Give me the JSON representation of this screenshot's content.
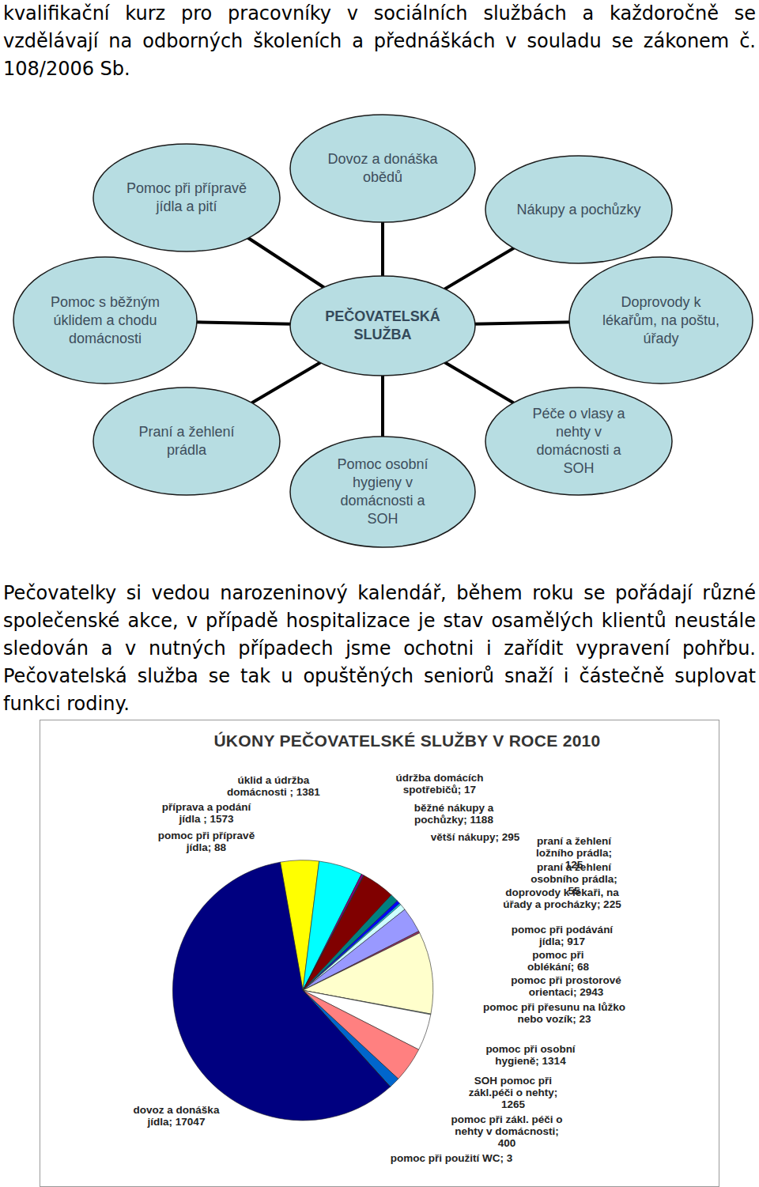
{
  "paragraphs": [
    "kvalifikační kurz pro pracovníky v sociálních službách a každoročně se vzdělávají na odborných školeních a přednáškách v souladu se zákonem č. 108/2006 Sb.",
    "Pečovatelky si vedou narozeninový kalendář, během roku se pořádají různé společenské akce, v případě hospitalizace je stav osamělých klientů neustále sledován a v nutných případech jsme ochotni i zařídit vypravení pohřbu. Pečovatelská služba se tak u opuštěných seniorů snaží i částečně suplovat funkci rodiny."
  ],
  "diagram": {
    "center": "PEČOVATELSKÁ SLUŽBA",
    "nodes": [
      "Pomoc při přípravě jídla a pití",
      "Dovoz a donáška obědů",
      "Nákupy a pochůzky",
      "Pomoc s běžným úklidem a chodu domácnosti",
      "Doprovody k lékařům, na poštu, úřady",
      "Praní a žehlení prádla",
      "Pomoc osobní hygieny v domácnosti a SOH",
      "Péče o vlasy a nehty v domácnosti a SOH"
    ]
  },
  "chart_data": {
    "type": "pie",
    "title": "ÚKONY PEČOVATELSKÉ SLUŽBY V ROCE 2010",
    "categories": [
      "úklid a údržba domácnosti",
      "příprava a podání jídla",
      "pomoc při přípravě jídla",
      "údržba domácích spotřebičů",
      "běžné nákupy a pochůzky",
      "větší nákupy",
      "praní a žehlení ložního prádla",
      "praní a žehlení osobního prádla",
      "doprovody k lékaři, na úřady a procházky",
      "pomoc při podávání jídla",
      "pomoc při oblékání",
      "pomoc při prostorové orientaci",
      "pomoc při přesunu na lůžko nebo vozík",
      "pomoc při osobní hygieně",
      "SOH pomoc při zákl.péči o nehty",
      "pomoc při zákl. péči o nehty v domácnosti",
      "pomoc při použití WC",
      "dovoz a donáška jídla"
    ],
    "values": [
      1381,
      1573,
      88,
      17,
      1188,
      295,
      125,
      55,
      225,
      917,
      68,
      2943,
      23,
      1314,
      1265,
      400,
      3,
      17047
    ],
    "value_labels": [
      "úklid a údržba domácnosti ; 1381",
      "příprava a podání jídla ; 1573",
      "pomoc při přípravě jídla; 88",
      "údržba domácích spotřebičů; 17",
      "běžné nákupy a pochůzky; 1188",
      "větší nákupy; 295",
      "praní a žehlení ložního prádla; 125",
      "praní a žehlení osobního prádla; 55",
      "doprovody k lékaři, na úřady a procházky; 225",
      "pomoc při podávání jídla; 917",
      "pomoc při oblékání; 68",
      "pomoc při prostorové orientaci; 2943",
      "pomoc při přesunu na lůžko nebo vozík; 23",
      "pomoc při osobní hygieně; 1314",
      "SOH pomoc při zákl.péči o nehty; 1265",
      "pomoc při zákl. péči o nehty v domácnosti; 400",
      "pomoc při použití WC; 3",
      "dovoz a donáška jídla; 17047"
    ],
    "colors": [
      "#FFFF00",
      "#00FFFF",
      "#800080",
      "#008080",
      "#800000",
      "#008080",
      "#0000FF",
      "#00CCFF",
      "#CCFFFF",
      "#9999FF",
      "#993366",
      "#FFFFCC",
      "#CCFFFF",
      "#FFFFFF",
      "#FF8080",
      "#0066CC",
      "#CCCCFF",
      "#000080"
    ],
    "data_labels": true
  }
}
